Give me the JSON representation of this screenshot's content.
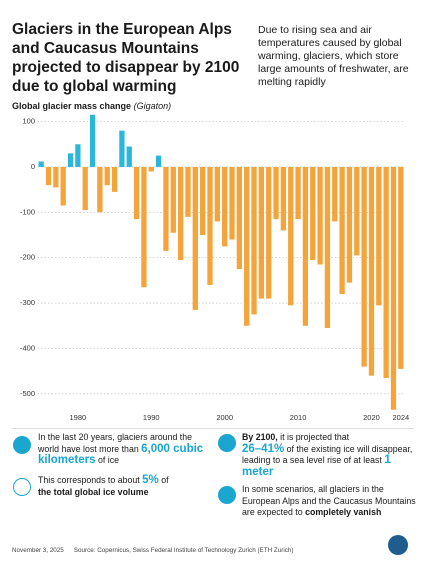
{
  "chart_data": {
    "type": "bar",
    "title": "Glaciers in the European Alps and Caucasus Mountains projected to disappear by 2100 due to global warming",
    "subtitle": "Due to rising sea and air temperatures caused by global warming, glaciers, which store large amounts of freshwater, are melting rapidly",
    "y_label": "Global glacier mass change",
    "y_unit": "(Gigaton)",
    "x": [
      1975,
      1976,
      1977,
      1978,
      1979,
      1980,
      1981,
      1982,
      1983,
      1984,
      1985,
      1986,
      1987,
      1988,
      1989,
      1990,
      1991,
      1992,
      1993,
      1994,
      1995,
      1996,
      1997,
      1998,
      1999,
      2000,
      2001,
      2002,
      2003,
      2004,
      2005,
      2006,
      2007,
      2008,
      2009,
      2010,
      2011,
      2012,
      2013,
      2014,
      2015,
      2016,
      2017,
      2018,
      2019,
      2020,
      2021,
      2022,
      2023,
      2024
    ],
    "values": [
      12,
      -40,
      -45,
      -85,
      30,
      50,
      -95,
      115,
      -100,
      -40,
      -55,
      80,
      45,
      -115,
      -265,
      -10,
      25,
      -185,
      -145,
      -205,
      -110,
      -315,
      -150,
      -260,
      -120,
      -175,
      -160,
      -225,
      -350,
      -325,
      -290,
      -290,
      -115,
      -140,
      -305,
      -115,
      -350,
      -205,
      -215,
      -355,
      -120,
      -280,
      -255,
      -195,
      -440,
      -460,
      -305,
      -465,
      -535,
      -445
    ],
    "colors": {
      "positive": "#2bb7dc",
      "negative": "#f3a43b"
    },
    "xlim": [
      1974.5,
      2024.5
    ],
    "xticks": [
      1980,
      1990,
      2000,
      2010,
      2020,
      2024
    ],
    "ylim": [
      -540,
      120
    ],
    "yticks": [
      100,
      0,
      -100,
      -200,
      -300,
      -400,
      -500
    ],
    "grid": true
  },
  "info": [
    [
      "In the last 20 years, glaciers around the world have lost more than ",
      "6,000 cubic kilometers",
      " of ice"
    ],
    [
      "This corresponds to about ",
      "5%",
      " of",
      "the total global ice volume"
    ],
    [
      "By 2100,",
      " it is projected that",
      "26–41%",
      " of the existing ice will disappear, leading to a sea level rise of at least ",
      "1 meter"
    ],
    [
      "In some scenarios, all glaciers in the European Alps and the Caucasus Mountains are expected to ",
      "completely vanish"
    ]
  ],
  "footer": {
    "date": "November 3, 2025",
    "source": "Source: Copernicus, Swiss Federal Institute of Technology Zurich (ETH Zurich)"
  }
}
